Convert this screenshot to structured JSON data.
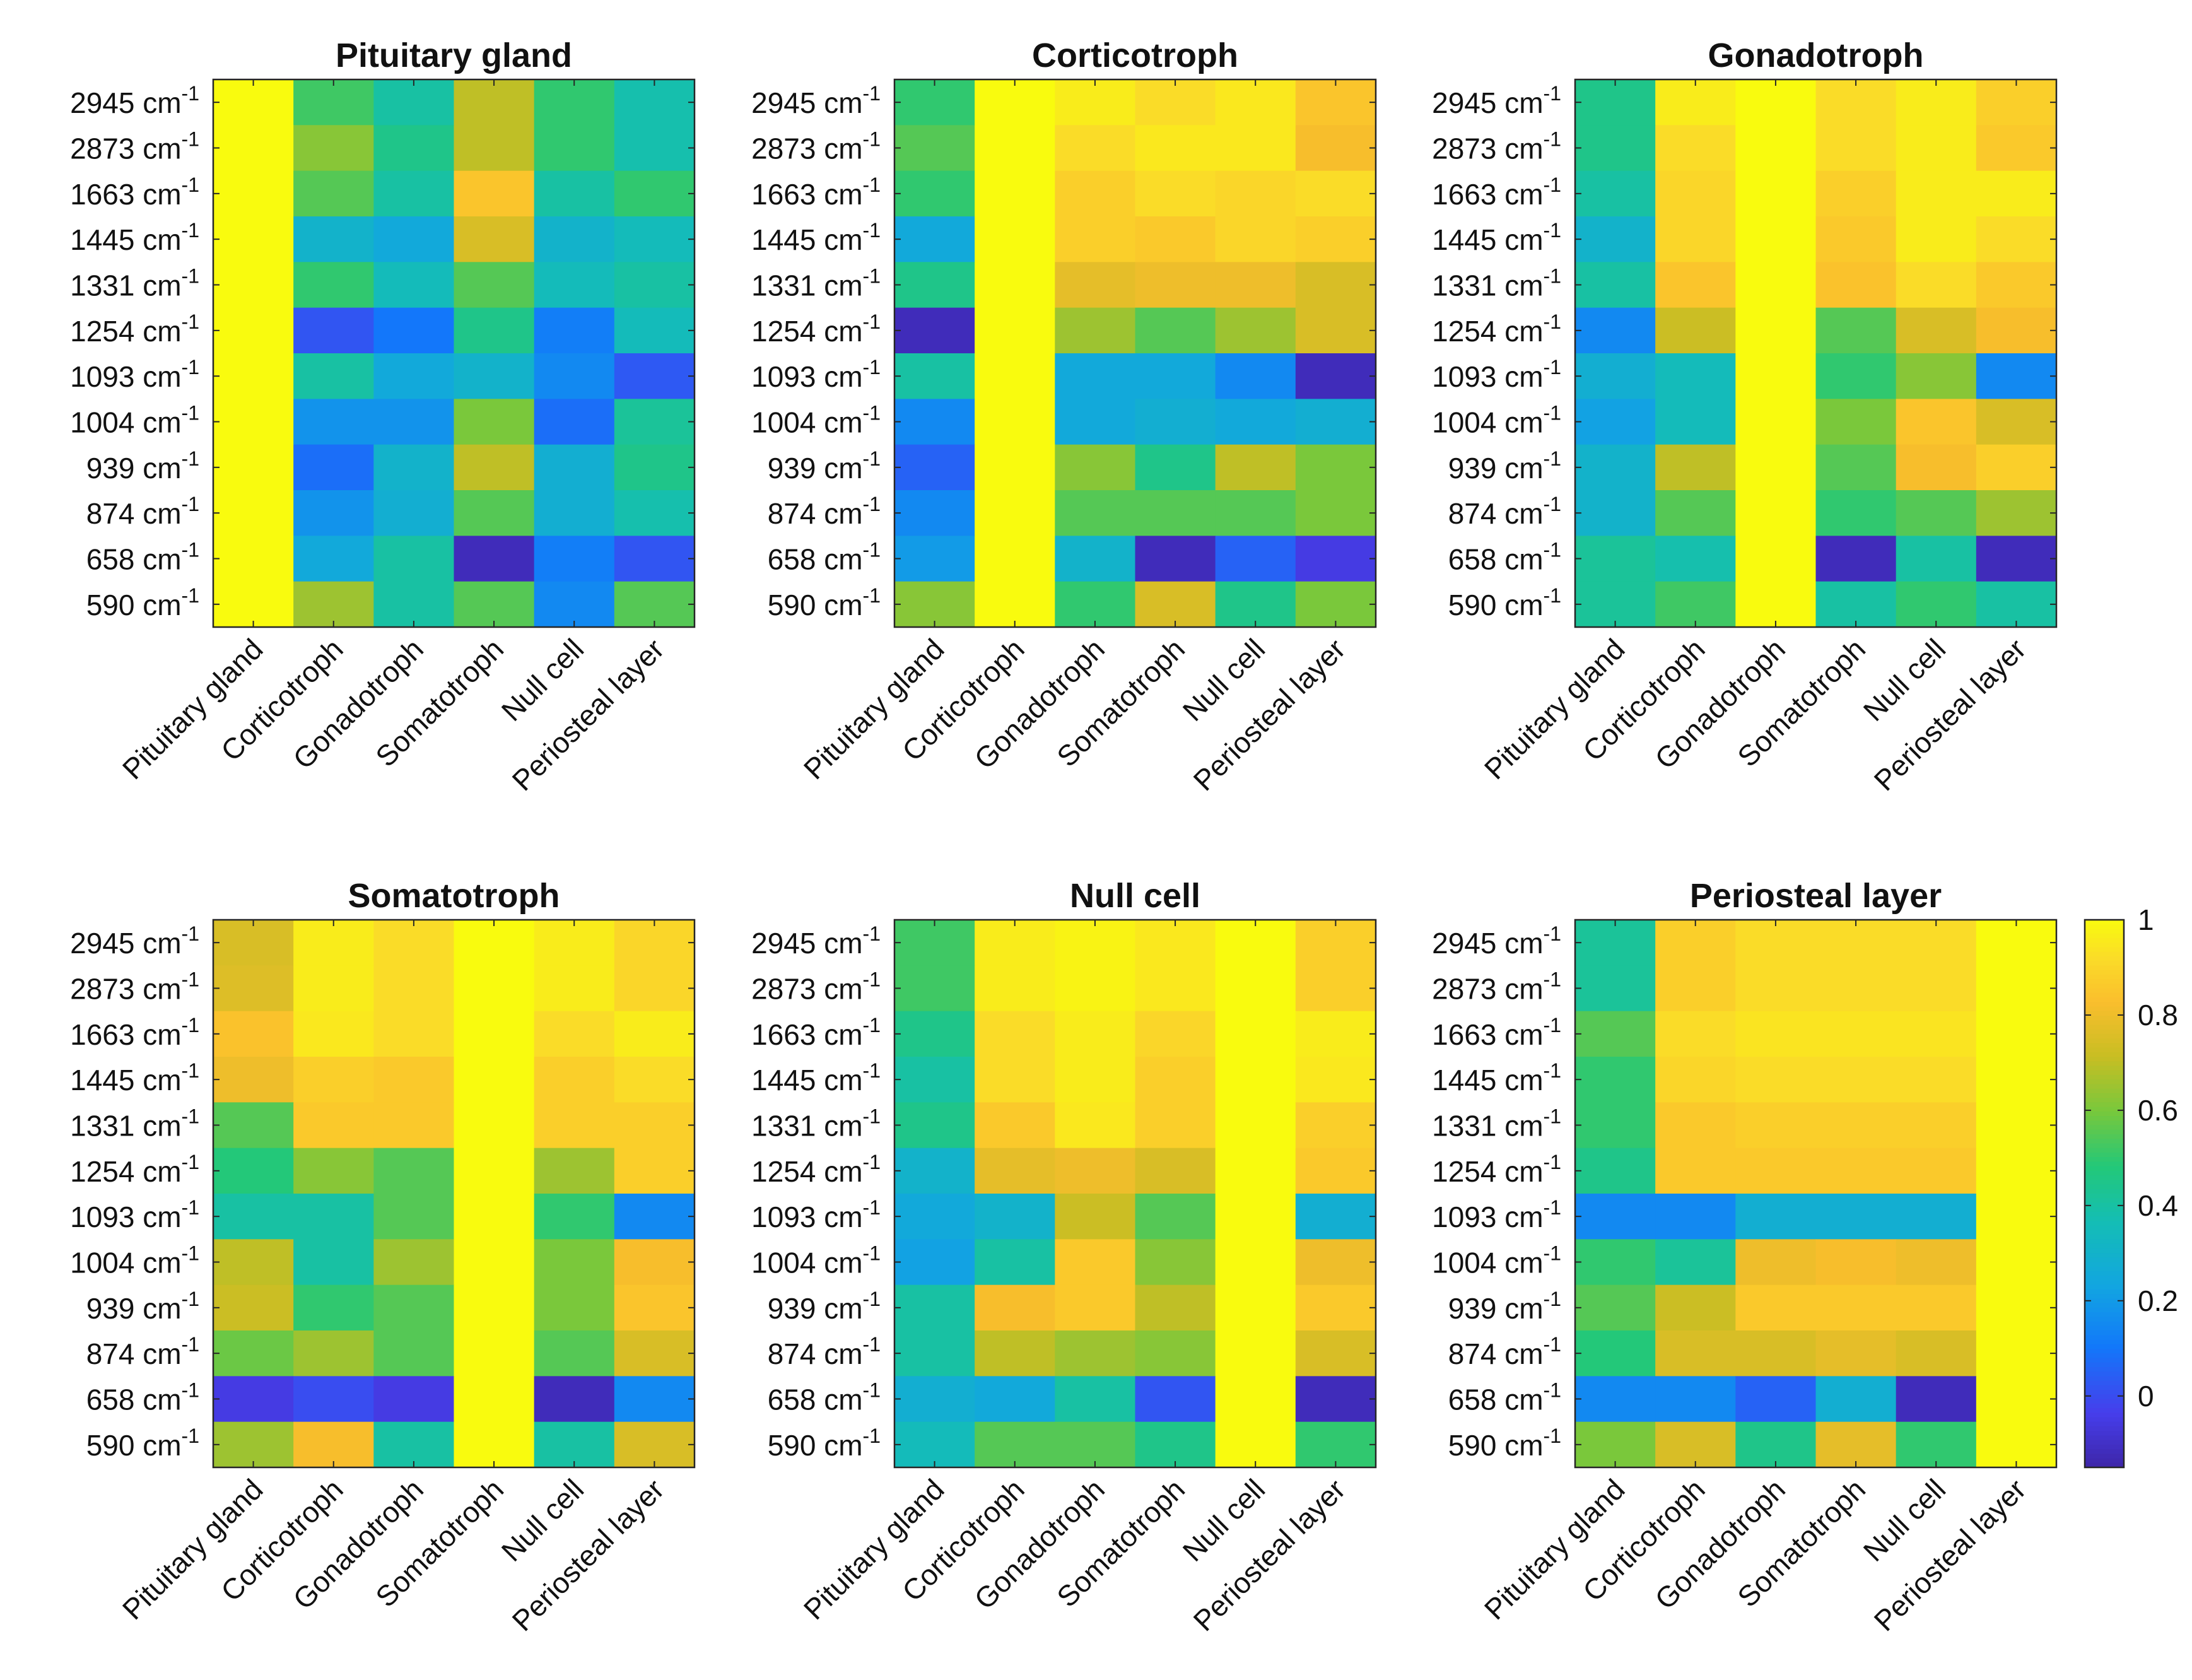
{
  "chart_data": [
    {
      "type": "heatmap",
      "title": "Pituitary gland",
      "rows": [
        "2945 cm-1",
        "2873 cm-1",
        "1663 cm-1",
        "1445 cm-1",
        "1331 cm-1",
        "1254 cm-1",
        "1093 cm-1",
        "1004 cm-1",
        "939 cm-1",
        "874 cm-1",
        "658 cm-1",
        "590 cm-1"
      ],
      "columns": [
        "Pituitary gland",
        "Corticotroph",
        "Gonadotroph",
        "Somatotroph",
        "Null cell",
        "Periosteal layer"
      ],
      "values": [
        [
          1,
          0.52,
          0.4,
          0.7,
          0.5,
          0.38
        ],
        [
          1,
          0.62,
          0.45,
          0.7,
          0.5,
          0.38
        ],
        [
          1,
          0.55,
          0.4,
          0.85,
          0.4,
          0.5
        ],
        [
          1,
          0.3,
          0.25,
          0.75,
          0.3,
          0.35
        ],
        [
          1,
          0.5,
          0.35,
          0.55,
          0.35,
          0.4
        ],
        [
          1,
          0.02,
          0.1,
          0.45,
          0.12,
          0.35
        ],
        [
          1,
          0.4,
          0.25,
          0.3,
          0.15,
          0.03
        ],
        [
          1,
          0.18,
          0.18,
          0.6,
          0.08,
          0.42
        ],
        [
          1,
          0.08,
          0.3,
          0.7,
          0.28,
          0.45
        ],
        [
          1,
          0.18,
          0.28,
          0.55,
          0.28,
          0.38
        ],
        [
          1,
          0.25,
          0.4,
          -0.12,
          0.12,
          0.02
        ],
        [
          1,
          0.65,
          0.4,
          0.55,
          0.15,
          0.55
        ]
      ]
    },
    {
      "type": "heatmap",
      "title": "Corticotroph",
      "rows": [
        "2945 cm-1",
        "2873 cm-1",
        "1663 cm-1",
        "1445 cm-1",
        "1331 cm-1",
        "1254 cm-1",
        "1093 cm-1",
        "1004 cm-1",
        "939 cm-1",
        "874 cm-1",
        "658 cm-1",
        "590 cm-1"
      ],
      "columns": [
        "Pituitary gland",
        "Corticotroph",
        "Gonadotroph",
        "Somatotroph",
        "Null cell",
        "Periosteal layer"
      ],
      "values": [
        [
          0.5,
          1,
          0.96,
          0.92,
          0.95,
          0.85
        ],
        [
          0.55,
          1,
          0.92,
          0.95,
          0.95,
          0.82
        ],
        [
          0.5,
          1,
          0.88,
          0.92,
          0.9,
          0.92
        ],
        [
          0.25,
          1,
          0.88,
          0.86,
          0.9,
          0.88
        ],
        [
          0.45,
          1,
          0.78,
          0.8,
          0.8,
          0.75
        ],
        [
          -0.12,
          1,
          0.65,
          0.55,
          0.65,
          0.75
        ],
        [
          0.4,
          1,
          0.25,
          0.25,
          0.15,
          -0.12
        ],
        [
          0.15,
          1,
          0.25,
          0.28,
          0.25,
          0.28
        ],
        [
          0.05,
          1,
          0.62,
          0.45,
          0.7,
          0.6
        ],
        [
          0.15,
          1,
          0.55,
          0.55,
          0.55,
          0.6
        ],
        [
          0.2,
          1,
          0.3,
          -0.12,
          0.05,
          -0.05
        ],
        [
          0.62,
          1,
          0.5,
          0.75,
          0.45,
          0.6
        ]
      ]
    },
    {
      "type": "heatmap",
      "title": "Gonadotroph",
      "rows": [
        "2945 cm-1",
        "2873 cm-1",
        "1663 cm-1",
        "1445 cm-1",
        "1331 cm-1",
        "1254 cm-1",
        "1093 cm-1",
        "1004 cm-1",
        "939 cm-1",
        "874 cm-1",
        "658 cm-1",
        "590 cm-1"
      ],
      "columns": [
        "Pituitary gland",
        "Corticotroph",
        "Gonadotroph",
        "Somatotroph",
        "Null cell",
        "Periosteal layer"
      ],
      "values": [
        [
          0.45,
          0.96,
          1,
          0.92,
          0.96,
          0.88
        ],
        [
          0.45,
          0.92,
          1,
          0.92,
          0.96,
          0.86
        ],
        [
          0.4,
          0.9,
          1,
          0.88,
          0.96,
          0.96
        ],
        [
          0.3,
          0.9,
          1,
          0.86,
          0.96,
          0.92
        ],
        [
          0.4,
          0.85,
          1,
          0.84,
          0.92,
          0.86
        ],
        [
          0.15,
          0.72,
          1,
          0.55,
          0.75,
          0.82
        ],
        [
          0.28,
          0.35,
          1,
          0.5,
          0.62,
          0.15
        ],
        [
          0.22,
          0.35,
          1,
          0.6,
          0.85,
          0.75
        ],
        [
          0.3,
          0.7,
          1,
          0.55,
          0.82,
          0.88
        ],
        [
          0.3,
          0.55,
          1,
          0.5,
          0.55,
          0.65
        ],
        [
          0.42,
          0.38,
          1,
          -0.12,
          0.4,
          -0.12
        ],
        [
          0.42,
          0.52,
          1,
          0.4,
          0.5,
          0.4
        ]
      ]
    },
    {
      "type": "heatmap",
      "title": "Somatotroph",
      "rows": [
        "2945 cm-1",
        "2873 cm-1",
        "1663 cm-1",
        "1445 cm-1",
        "1331 cm-1",
        "1254 cm-1",
        "1093 cm-1",
        "1004 cm-1",
        "939 cm-1",
        "874 cm-1",
        "658 cm-1",
        "590 cm-1"
      ],
      "columns": [
        "Pituitary gland",
        "Corticotroph",
        "Gonadotroph",
        "Somatotroph",
        "Null cell",
        "Periosteal layer"
      ],
      "values": [
        [
          0.75,
          0.96,
          0.92,
          1,
          0.96,
          0.9
        ],
        [
          0.76,
          0.96,
          0.92,
          1,
          0.96,
          0.9
        ],
        [
          0.84,
          0.95,
          0.92,
          1,
          0.92,
          0.96
        ],
        [
          0.8,
          0.88,
          0.86,
          1,
          0.88,
          0.92
        ],
        [
          0.55,
          0.86,
          0.86,
          1,
          0.88,
          0.88
        ],
        [
          0.48,
          0.62,
          0.55,
          1,
          0.65,
          0.88
        ],
        [
          0.4,
          0.4,
          0.55,
          1,
          0.5,
          0.15
        ],
        [
          0.7,
          0.4,
          0.65,
          1,
          0.6,
          0.82
        ],
        [
          0.72,
          0.5,
          0.55,
          1,
          0.6,
          0.85
        ],
        [
          0.58,
          0.65,
          0.55,
          1,
          0.55,
          0.75
        ],
        [
          -0.05,
          0.0,
          -0.05,
          1,
          -0.12,
          0.15
        ],
        [
          0.65,
          0.82,
          0.4,
          1,
          0.4,
          0.75
        ]
      ]
    },
    {
      "type": "heatmap",
      "title": "Null cell",
      "rows": [
        "2945 cm-1",
        "2873 cm-1",
        "1663 cm-1",
        "1445 cm-1",
        "1331 cm-1",
        "1254 cm-1",
        "1093 cm-1",
        "1004 cm-1",
        "939 cm-1",
        "874 cm-1",
        "658 cm-1",
        "590 cm-1"
      ],
      "columns": [
        "Pituitary gland",
        "Corticotroph",
        "Gonadotroph",
        "Somatotroph",
        "Null cell",
        "Periosteal layer"
      ],
      "values": [
        [
          0.52,
          0.96,
          0.98,
          0.95,
          1,
          0.88
        ],
        [
          0.52,
          0.96,
          0.98,
          0.95,
          1,
          0.88
        ],
        [
          0.45,
          0.92,
          0.96,
          0.9,
          1,
          0.96
        ],
        [
          0.4,
          0.92,
          0.96,
          0.88,
          1,
          0.95
        ],
        [
          0.45,
          0.86,
          0.95,
          0.88,
          1,
          0.88
        ],
        [
          0.3,
          0.78,
          0.8,
          0.75,
          1,
          0.86
        ],
        [
          0.25,
          0.3,
          0.72,
          0.55,
          1,
          0.28
        ],
        [
          0.22,
          0.4,
          0.86,
          0.62,
          1,
          0.8
        ],
        [
          0.4,
          0.82,
          0.86,
          0.7,
          1,
          0.86
        ],
        [
          0.4,
          0.7,
          0.65,
          0.62,
          1,
          0.75
        ],
        [
          0.28,
          0.25,
          0.4,
          0.02,
          1,
          -0.12
        ],
        [
          0.35,
          0.55,
          0.55,
          0.45,
          1,
          0.5
        ]
      ]
    },
    {
      "type": "heatmap",
      "title": "Periosteal layer",
      "rows": [
        "2945 cm-1",
        "2873 cm-1",
        "1663 cm-1",
        "1445 cm-1",
        "1331 cm-1",
        "1254 cm-1",
        "1093 cm-1",
        "1004 cm-1",
        "939 cm-1",
        "874 cm-1",
        "658 cm-1",
        "590 cm-1"
      ],
      "columns": [
        "Pituitary gland",
        "Corticotroph",
        "Gonadotroph",
        "Somatotroph",
        "Null cell",
        "Periosteal layer"
      ],
      "values": [
        [
          0.42,
          0.88,
          0.92,
          0.92,
          0.92,
          1
        ],
        [
          0.42,
          0.88,
          0.92,
          0.92,
          0.92,
          1
        ],
        [
          0.55,
          0.92,
          0.94,
          0.94,
          0.94,
          1
        ],
        [
          0.5,
          0.9,
          0.92,
          0.92,
          0.92,
          1
        ],
        [
          0.5,
          0.86,
          0.88,
          0.88,
          0.88,
          1
        ],
        [
          0.45,
          0.86,
          0.86,
          0.86,
          0.86,
          1
        ],
        [
          0.15,
          0.15,
          0.28,
          0.28,
          0.28,
          1
        ],
        [
          0.5,
          0.42,
          0.8,
          0.82,
          0.8,
          1
        ],
        [
          0.55,
          0.72,
          0.86,
          0.86,
          0.86,
          1
        ],
        [
          0.48,
          0.75,
          0.75,
          0.78,
          0.75,
          1
        ],
        [
          0.15,
          0.15,
          0.05,
          0.28,
          -0.12,
          1
        ],
        [
          0.6,
          0.75,
          0.45,
          0.78,
          0.5,
          1
        ]
      ]
    }
  ],
  "colorbar": {
    "min": -0.15,
    "max": 1,
    "ticks": [
      "0",
      "0.2",
      "0.4",
      "0.6",
      "0.8",
      "1"
    ],
    "tick_values": [
      0,
      0.2,
      0.4,
      0.6,
      0.8,
      1
    ]
  },
  "unit_base": "cm",
  "unit_exponent": "-1"
}
